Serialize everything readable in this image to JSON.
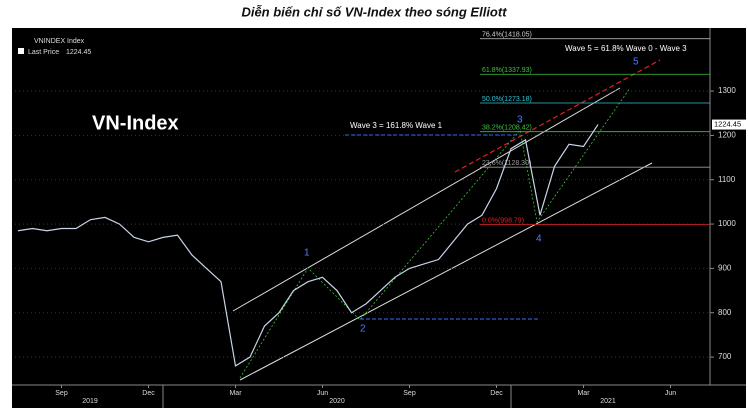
{
  "chart_data": {
    "type": "line",
    "title": "Diễn biến chỉ số VN-Index theo sóng Elliott",
    "watermark": "VN-Index",
    "legend_title": "VNINDEX Index",
    "legend_label": "Last Price",
    "last_price": 1224.45,
    "categories": [
      null,
      null,
      null,
      "Sep",
      null,
      null,
      null,
      null,
      null,
      "Dec",
      null,
      null,
      null,
      null,
      null,
      "Mar",
      null,
      null,
      null,
      null,
      null,
      "Jun",
      null,
      null,
      null,
      null,
      null,
      "Sep",
      null,
      null,
      null,
      null,
      null,
      "Dec",
      null,
      null,
      null,
      null,
      null,
      "Mar",
      null,
      null,
      null,
      null,
      null,
      "Jun",
      null,
      null
    ],
    "years": [
      "2019",
      "2020",
      "2021"
    ],
    "series": [
      {
        "name": "VNINDEX Index",
        "color": "#c8d4e8",
        "values": [
          985,
          990,
          985,
          990,
          990,
          1010,
          1015,
          1000,
          970,
          960,
          970,
          975,
          930,
          900,
          870,
          680,
          700,
          770,
          800,
          850,
          870,
          880,
          850,
          800,
          820,
          850,
          880,
          900,
          910,
          920,
          960,
          1000,
          1020,
          1080,
          1170,
          1190,
          1020,
          1130,
          1180,
          1175,
          1224.45,
          null,
          null,
          null,
          null,
          null,
          null,
          null
        ]
      }
    ],
    "ylim": [
      637,
      1431
    ],
    "yticks": [
      700,
      800,
      900,
      1000,
      1100,
      1200,
      1300
    ],
    "fib_levels": [
      {
        "label": "76.4%(1418.05)",
        "value": 1418.05,
        "color": "#cfcfcf"
      },
      {
        "label": "61.8%(1337.93)",
        "value": 1337.93,
        "color": "#3cc43c"
      },
      {
        "label": "50.0%(1273.18)",
        "value": 1273.18,
        "color": "#2fc6d6"
      },
      {
        "label": "38.2%(1208.42)",
        "value": 1208.42,
        "color": "#3cc43c"
      },
      {
        "label": "23.6%(1128.30)",
        "value": 1128.3,
        "color": "#9a9a9a"
      },
      {
        "label": "0.0%(998.79)",
        "value": 998.79,
        "color": "#e02020"
      }
    ],
    "annotations": [
      "Wave 3 = 161.8% Wave 1",
      "Wave 5 = 61.8% Wave 0 - Wave 3"
    ],
    "wave_labels": [
      "1",
      "2",
      "3",
      "4",
      "5"
    ]
  }
}
